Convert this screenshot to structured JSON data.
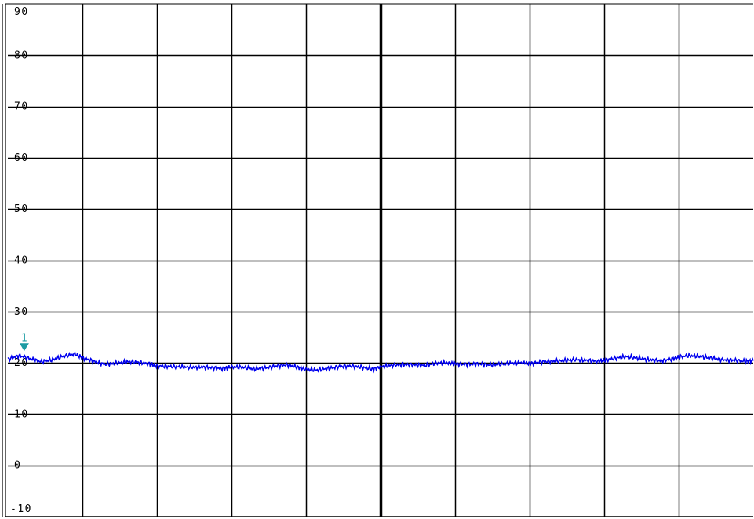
{
  "chart_data": {
    "type": "line",
    "xlabel": "",
    "ylabel": "",
    "ylim": [
      -10,
      90
    ],
    "xlim": [
      0,
      1000
    ],
    "y_ticks": [
      90,
      80,
      70,
      60,
      50,
      40,
      30,
      20,
      10,
      0,
      -10
    ],
    "y_tick_labels": [
      "90",
      "80",
      "70",
      "60",
      "50",
      "40",
      "30",
      "20",
      "10",
      "0",
      "-10"
    ],
    "grid": true,
    "x_divisions": 10,
    "series": [
      {
        "color": "#0000ee",
        "x": [
          0,
          15,
          30,
          45,
          60,
          75,
          90,
          100,
          115,
          130,
          145,
          160,
          175,
          190,
          200,
          215,
          230,
          245,
          260,
          275,
          290,
          300,
          315,
          330,
          345,
          360,
          375,
          390,
          400,
          415,
          430,
          445,
          460,
          475,
          490,
          500,
          515,
          530,
          545,
          560,
          575,
          590,
          600,
          615,
          630,
          645,
          660,
          675,
          690,
          700,
          715,
          730,
          745,
          760,
          775,
          790,
          800,
          815,
          830,
          845,
          860,
          875,
          890,
          900,
          915,
          930,
          945,
          960,
          975,
          990,
          1000
        ],
        "values": [
          20.7,
          21.4,
          20.8,
          20.2,
          20.6,
          21.3,
          21.7,
          21.0,
          20.3,
          19.7,
          19.9,
          20.2,
          20.1,
          19.8,
          19.4,
          19.3,
          19.2,
          19.1,
          19.2,
          19.0,
          18.9,
          19.2,
          19.1,
          18.8,
          19.0,
          19.4,
          19.6,
          19.1,
          18.7,
          18.6,
          18.9,
          19.3,
          19.4,
          19.1,
          18.8,
          19.2,
          19.5,
          19.7,
          19.6,
          19.5,
          19.9,
          20.0,
          19.8,
          19.7,
          19.8,
          19.6,
          19.7,
          19.9,
          20.1,
          19.8,
          20.2,
          20.3,
          20.4,
          20.6,
          20.5,
          20.3,
          20.5,
          20.9,
          21.2,
          20.9,
          20.6,
          20.4,
          20.7,
          21.1,
          21.4,
          21.2,
          20.9,
          20.6,
          20.5,
          20.3,
          20.4
        ]
      }
    ],
    "markers": [
      {
        "label": "1",
        "x": 22,
        "y": 21.5,
        "color": "#1a9ba3"
      }
    ]
  }
}
